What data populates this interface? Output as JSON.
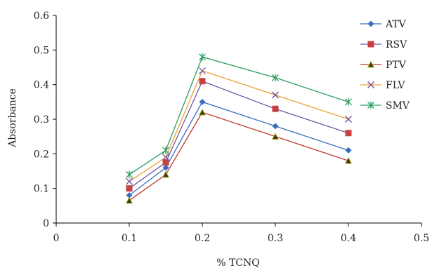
{
  "chart_data": {
    "type": "line",
    "title": "",
    "xlabel": "% TCNQ",
    "ylabel": "Absorbance",
    "xlim": [
      0,
      0.5
    ],
    "ylim": [
      0,
      0.6
    ],
    "xticks": [
      0,
      0.1,
      0.2,
      0.3,
      0.4,
      0.5
    ],
    "yticks": [
      0,
      0.1,
      0.2,
      0.3,
      0.4,
      0.5,
      0.6
    ],
    "xtick_labels": [
      "0",
      "0.1",
      "0.2",
      "0.3",
      "0.4",
      "0.5"
    ],
    "ytick_labels": [
      "0",
      "0.1",
      "0.2",
      "0.3",
      "0.4",
      "0.5",
      "0.6"
    ],
    "grid": false,
    "legend_position": "top-right",
    "x": [
      0.1,
      0.15,
      0.2,
      0.3,
      0.4
    ],
    "series": [
      {
        "name": "ATV",
        "color": "#3a6fbf",
        "marker": "diamond",
        "values": [
          0.08,
          0.16,
          0.35,
          0.28,
          0.21
        ]
      },
      {
        "name": "RSV",
        "color": "#c94040",
        "marker": "square",
        "values": [
          0.1,
          0.175,
          0.41,
          0.33,
          0.26
        ]
      },
      {
        "name": "PTV",
        "color": "#c0392b",
        "marker": "triangle",
        "values": [
          0.065,
          0.14,
          0.32,
          0.25,
          0.18
        ]
      },
      {
        "name": "FLV",
        "color": "#7b4fa0",
        "marker": "x",
        "values": [
          0.12,
          0.19,
          0.44,
          0.37,
          0.3
        ]
      },
      {
        "name": "SMV",
        "color": "#2a9d5c",
        "marker": "star",
        "values": [
          0.14,
          0.21,
          0.48,
          0.42,
          0.35
        ]
      }
    ],
    "extra_colors": {
      "FLV_line": "#f0a030",
      "axis": "#000000"
    }
  }
}
